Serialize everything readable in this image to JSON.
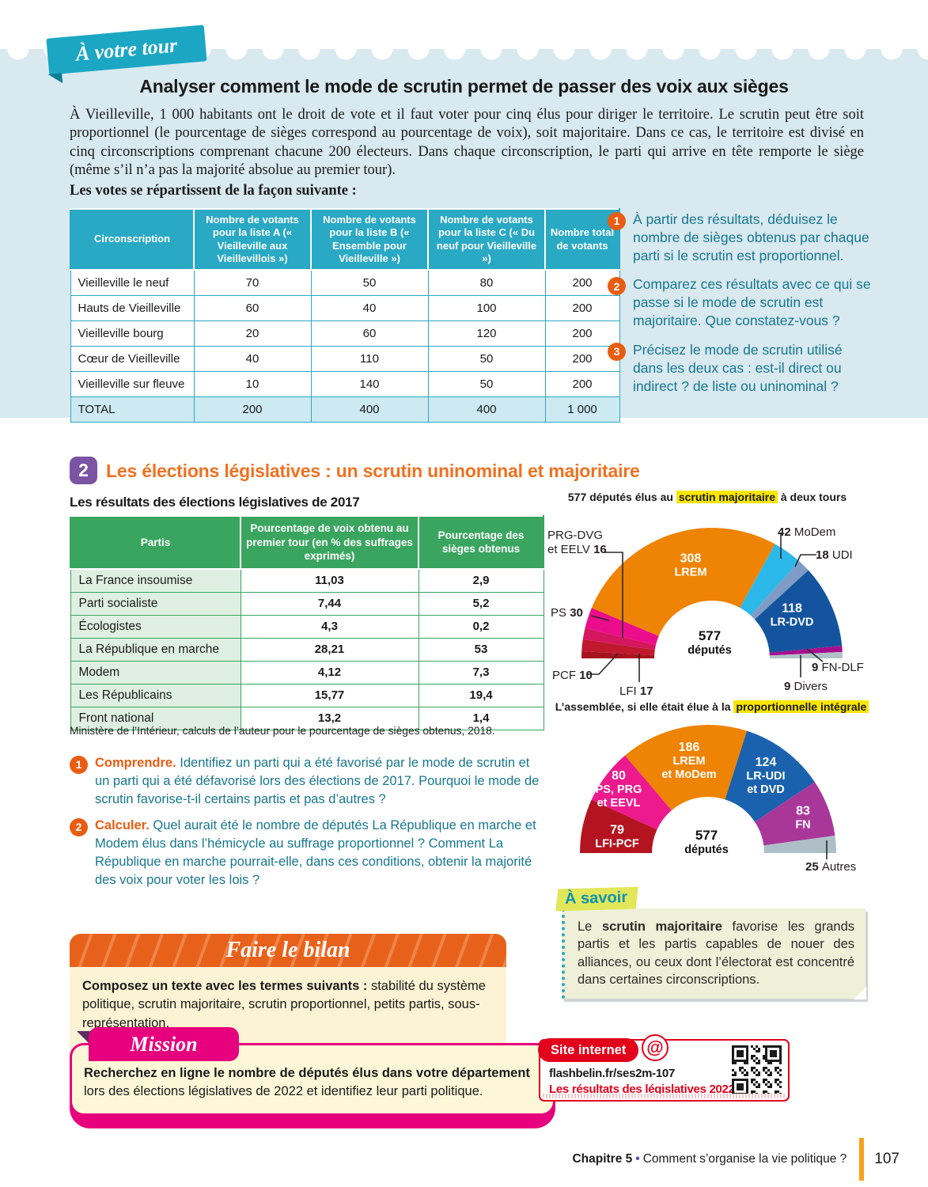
{
  "ribbon": {
    "label": "À votre tour"
  },
  "activity": {
    "title": "Analyser comment le mode de scrutin permet de passer des voix aux sièges",
    "intro": "À Vieilleville, 1 000 habitants ont le droit de vote et il faut voter pour cinq élus pour diriger le territoire. Le scrutin peut être soit proportionnel (le pourcentage de sièges correspond au pourcentage de voix), soit majoritaire. Dans ce cas, le territoire est divisé en cinq circonscriptions comprenant chacune 200 électeurs. Dans chaque circonscription, le parti qui arrive en tête remporte le siège (même s’il n’a pas la majorité absolue au premier tour).",
    "lead": "Les votes se répartissent de la façon suivante :",
    "table": {
      "headers": [
        "Circonscription",
        "Nombre de votants pour la liste A (« Vieilleville aux Vieillevillois »)",
        "Nombre de votants pour la liste B (« Ensemble pour Vieilleville »)",
        "Nombre de votants pour la liste C (« Du neuf pour Vieilleville »)",
        "Nombre total de votants"
      ],
      "rows": [
        [
          "Vieilleville le neuf",
          "70",
          "50",
          "80",
          "200"
        ],
        [
          "Hauts de Vieilleville",
          "60",
          "40",
          "100",
          "200"
        ],
        [
          "Vieilleville bourg",
          "20",
          "60",
          "120",
          "200"
        ],
        [
          "Cœur de Vieilleville",
          "40",
          "110",
          "50",
          "200"
        ],
        [
          "Vieilleville sur fleuve",
          "10",
          "140",
          "50",
          "200"
        ]
      ],
      "total": [
        "TOTAL",
        "200",
        "400",
        "400",
        "1 000"
      ]
    },
    "questions": [
      {
        "num": "1",
        "text": "À partir des résultats, déduisez le nombre de sièges obtenus par chaque parti si le scrutin est proportionnel."
      },
      {
        "num": "2",
        "text": "Comparez ces résultats avec ce qui se passe si le mode de scrutin est majoritaire. Que constatez-vous ?"
      },
      {
        "num": "3",
        "text": "Précisez le mode de scrutin utilisé dans les deux cas : est-il direct ou indirect ? de liste ou uninominal ?"
      }
    ]
  },
  "section2": {
    "badge": "2",
    "title": "Les élections législatives : un scrutin uninominal et majoritaire",
    "table_title": "Les résultats des élections législatives de 2017",
    "table": {
      "headers": [
        "Partis",
        "Pourcentage de voix obtenu au premier tour (en % des suffrages exprimés)",
        "Pourcentage des sièges obtenus"
      ],
      "rows": [
        [
          "La France insoumise",
          "11,03",
          "2,9"
        ],
        [
          "Parti socialiste",
          "7,44",
          "5,2"
        ],
        [
          "Écologistes",
          "4,3",
          "0,2"
        ],
        [
          "La République en marche",
          "28,21",
          "53"
        ],
        [
          "Modem",
          "4,12",
          "7,3"
        ],
        [
          "Les Républicains",
          "15,77",
          "19,4"
        ],
        [
          "Front national",
          "13,2",
          "1,4"
        ]
      ]
    },
    "source": "Ministère de l’Intérieur, calculs de l’auteur pour le pourcentage de sièges obtenus, 2018.",
    "questions": [
      {
        "num": "1",
        "lead": "Comprendre.",
        "text": " Identifiez un parti qui a été favorisé par le mode de scrutin et un parti qui a été défavorisé lors des élections de 2017. Pourquoi le mode de scrutin favorise-t-il certains partis et pas d’autres ?"
      },
      {
        "num": "2",
        "lead": "Calculer.",
        "text": " Quel aurait été le nombre de députés La République en marche et Modem élus dans l’hémicycle au suffrage proportionnel ? Comment La République en marche pourrait-elle, dans ces conditions, obtenir la majorité des voix pour voter les lois ?"
      }
    ]
  },
  "chart_data": [
    {
      "type": "pie",
      "variant": "hemicycle",
      "title_pre": "577 députés élus au ",
      "title_highlight": "scrutin majoritaire",
      "title_post": " à deux tours",
      "total": 577,
      "center_lines": [
        "577",
        "députés"
      ],
      "slices": [
        {
          "name": "PCF",
          "value": 10,
          "color": "#a8121e",
          "label_style": "outside",
          "label_lines": [
            "PCF"
          ],
          "value_pos": "end"
        },
        {
          "name": "LFI",
          "value": 17,
          "color": "#c0182c",
          "label_style": "outside",
          "label_lines": [
            "LFI"
          ],
          "value_pos": "end"
        },
        {
          "name": "PRG-DVG et EELV",
          "value": 16,
          "color": "#d4175e",
          "label_style": "outside",
          "label_lines": [
            "PRG-DVG",
            "et EELV"
          ],
          "value_pos": "end"
        },
        {
          "name": "PS",
          "value": 30,
          "color": "#ec0d8c",
          "label_style": "outside",
          "label_lines": [
            "PS"
          ],
          "value_pos": "end"
        },
        {
          "name": "LREM",
          "value": 308,
          "color": "#ef8303",
          "label_style": "inside",
          "label_lines": [
            "308",
            "LREM"
          ]
        },
        {
          "name": "MoDem",
          "value": 42,
          "color": "#2cb9ea",
          "label_style": "outside",
          "label_lines": [
            "MoDem"
          ],
          "value_pos": "start"
        },
        {
          "name": "UDI",
          "value": 18,
          "color": "#7e9cc5",
          "label_style": "outside",
          "label_lines": [
            "UDI"
          ],
          "value_pos": "start"
        },
        {
          "name": "LR-DVD",
          "value": 118,
          "color": "#14549e",
          "label_style": "inside",
          "label_lines": [
            "118",
            "LR-DVD"
          ]
        },
        {
          "name": "FN-DLF",
          "value": 9,
          "color": "#a60f90",
          "label_style": "outside",
          "label_lines": [
            "FN-DLF"
          ],
          "value_pos": "start"
        },
        {
          "name": "Divers",
          "value": 9,
          "color": "#b2c2c9",
          "label_style": "outside",
          "label_lines": [
            "Divers"
          ],
          "value_pos": "start"
        }
      ]
    },
    {
      "type": "pie",
      "variant": "hemicycle",
      "title_pre": "L’assemblée, si elle était élue à la ",
      "title_highlight": "proportionnelle intégrale",
      "title_post": "",
      "total": 577,
      "center_lines": [
        "577",
        "députés"
      ],
      "slices": [
        {
          "name": "LFI-PCF",
          "value": 79,
          "color": "#b41420",
          "label_style": "inside",
          "label_lines": [
            "79",
            "LFI-PCF"
          ]
        },
        {
          "name": "PS, PRG et EEVL",
          "value": 80,
          "color": "#ec1a8d",
          "label_style": "inside",
          "label_lines": [
            "80",
            "PS, PRG",
            "et EEVL"
          ]
        },
        {
          "name": "LREM et MoDem",
          "value": 186,
          "color": "#ef8303",
          "label_style": "inside",
          "label_lines": [
            "186",
            "LREM",
            "et MoDem"
          ]
        },
        {
          "name": "LR-UDI et DVD",
          "value": 124,
          "color": "#1b62ae",
          "label_style": "inside",
          "label_lines": [
            "124",
            "LR-UDI",
            "et DVD"
          ]
        },
        {
          "name": "FN",
          "value": 83,
          "color": "#a9379a",
          "label_style": "inside",
          "label_lines": [
            "83",
            "FN"
          ]
        },
        {
          "name": "Autres",
          "value": 25,
          "color": "#adbec6",
          "label_style": "outside",
          "label_lines": [
            "Autres"
          ],
          "value_pos": "start"
        }
      ]
    }
  ],
  "savoir": {
    "label": "À savoir",
    "pre": "Le ",
    "bold": "scrutin majoritaire",
    "post": " favorise les grands partis et les partis capables de nouer des alliances, ou ceux dont l’électorat est concentré dans certaines circonscriptions."
  },
  "bilan": {
    "title": "Faire le bilan",
    "lead": "Composez un texte avec les termes suivants :",
    "text": " stabilité du système politique, scrutin majoritaire, scrutin proportionnel, petits partis, sous-représentation."
  },
  "mission": {
    "label": "Mission",
    "bold": "Recherchez en ligne le nombre de députés élus dans votre département",
    "text": " lors des élections législatives de 2022 et identifiez leur parti politique."
  },
  "site": {
    "label": "Site internet",
    "at_icon": "@",
    "url": "flashbelin.fr/ses2m-107",
    "link": "Les résultats des législatives 2022"
  },
  "footer": {
    "chapter": "Chapitre 5",
    "separator": "•",
    "title": "Comment s’organise la vie politique ?",
    "page": "107"
  }
}
